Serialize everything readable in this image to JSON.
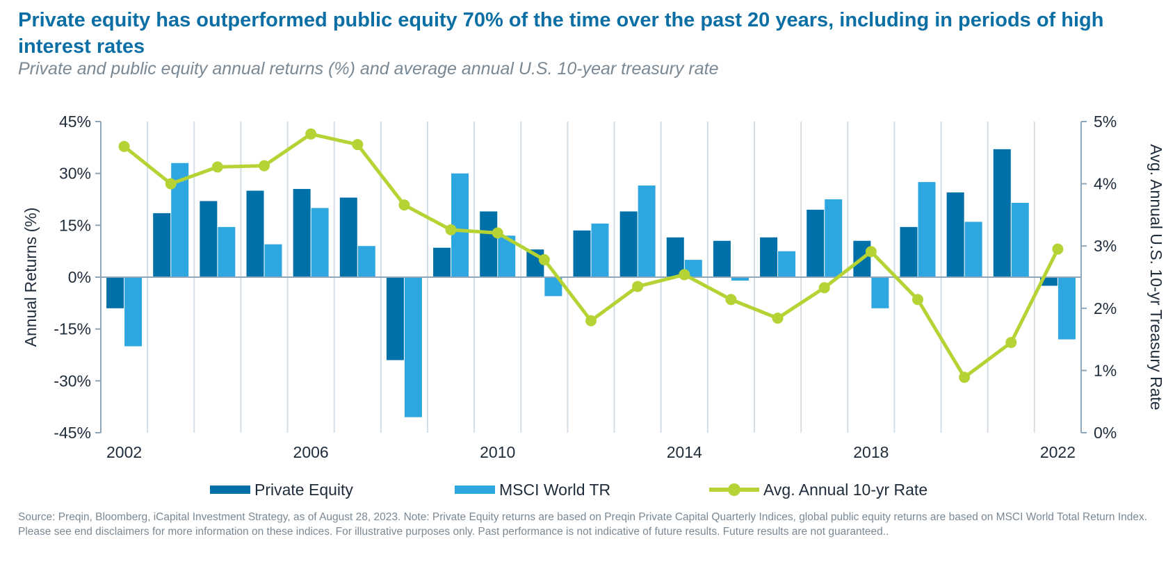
{
  "title": "Private equity has outperformed public equity 70% of the time over the past 20 years, including in periods of high interest rates",
  "subtitle": "Private and public equity annual returns (%) and average annual U.S. 10-year treasury rate",
  "colors": {
    "private_equity": "#0070a8",
    "msci_world": "#2ea7e0",
    "rate_line": "#b5d334",
    "axis": "#8fa5b8",
    "grid": "#d5dde4",
    "title": "#0b6fa5",
    "text": "#1e2b3a"
  },
  "chart_data": {
    "type": "bar",
    "categories": [
      2002,
      2003,
      2004,
      2005,
      2006,
      2007,
      2008,
      2009,
      2010,
      2011,
      2012,
      2013,
      2014,
      2015,
      2016,
      2017,
      2018,
      2019,
      2020,
      2021,
      2022
    ],
    "x_tick_labels": [
      "2002",
      "2006",
      "2010",
      "2014",
      "2018",
      "2022"
    ],
    "series": [
      {
        "name": "Private Equity",
        "type": "bar",
        "axis": "left",
        "values": [
          -9,
          18.5,
          22,
          25,
          25.5,
          23,
          -24,
          8.5,
          19,
          8,
          13.5,
          19,
          11.5,
          10.5,
          11.5,
          19.5,
          10.5,
          14.5,
          24.5,
          37,
          -2.5
        ]
      },
      {
        "name": "MSCI World TR",
        "type": "bar",
        "axis": "left",
        "values": [
          -20,
          33,
          14.5,
          9.5,
          20,
          9,
          -40.5,
          30,
          12,
          -5.5,
          15.5,
          26.5,
          5,
          -1,
          7.5,
          22.5,
          -9,
          27.5,
          16,
          21.5,
          -18
        ]
      },
      {
        "name": "Avg. Annual 10-yr Rate",
        "type": "line",
        "axis": "right",
        "values": [
          4.6,
          4.0,
          4.27,
          4.29,
          4.8,
          4.63,
          3.66,
          3.26,
          3.21,
          2.78,
          1.8,
          2.35,
          2.54,
          2.14,
          1.84,
          2.33,
          2.91,
          2.14,
          0.89,
          1.45,
          2.95
        ]
      }
    ],
    "left_axis": {
      "label": "Annual Returns (%)",
      "ylim": [
        -45,
        45
      ],
      "ticks": [
        45,
        30,
        15,
        0,
        -15,
        -30,
        -45
      ],
      "tick_labels": [
        "45%",
        "30%",
        "15%",
        "0%",
        "-15%",
        "-30%",
        "-45%"
      ]
    },
    "right_axis": {
      "label": "Avg. Annual U.S. 10-yr Treasury Rate",
      "ylim": [
        0,
        5
      ],
      "ticks": [
        5,
        4,
        3,
        2,
        1,
        0
      ],
      "tick_labels": [
        "5%",
        "4%",
        "3%",
        "2%",
        "1%",
        "0%"
      ]
    },
    "grid": "vertical",
    "legend_position": "bottom"
  },
  "legend": {
    "private_equity": "Private Equity",
    "msci_world": "MSCI World TR",
    "rate_line": "Avg. Annual 10-yr Rate"
  },
  "source": "Source: Preqin, Bloomberg, iCapital Investment Strategy, as of August 28, 2023. Note: Private Equity returns are based on Preqin Private Capital Quarterly Indices, global public equity returns are based on MSCI World Total Return Index. Please see end disclaimers for more information on these indices. For illustrative purposes only. Past performance is not indicative of future results. Future results are not guaranteed.."
}
